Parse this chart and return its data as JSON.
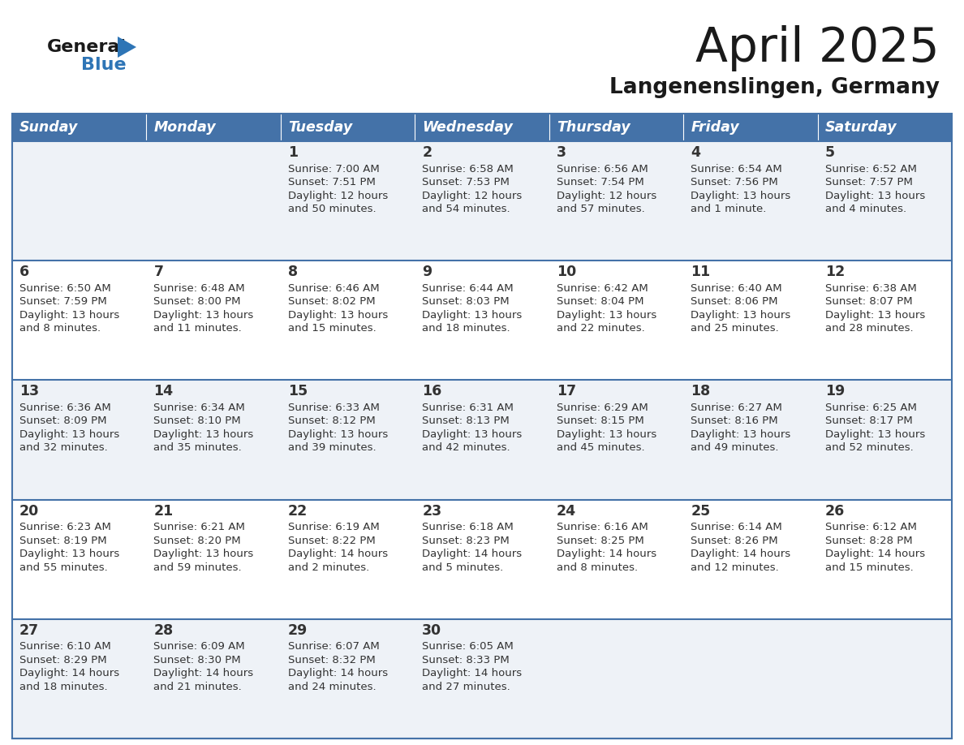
{
  "title": "April 2025",
  "subtitle": "Langenenslingen, Germany",
  "days_of_week": [
    "Sunday",
    "Monday",
    "Tuesday",
    "Wednesday",
    "Thursday",
    "Friday",
    "Saturday"
  ],
  "header_bg_color": "#4472a8",
  "header_text_color": "#ffffff",
  "cell_bg_even": "#eef2f7",
  "cell_bg_odd": "#ffffff",
  "row_line_color": "#4472a8",
  "text_color": "#333333",
  "title_color": "#1a1a1a",
  "logo_general_color": "#1a1a1a",
  "logo_blue_color": "#2e75b6",
  "weeks": [
    [
      {
        "day": null,
        "sunrise": null,
        "sunset": null,
        "daylight_line1": null,
        "daylight_line2": null
      },
      {
        "day": null,
        "sunrise": null,
        "sunset": null,
        "daylight_line1": null,
        "daylight_line2": null
      },
      {
        "day": 1,
        "sunrise": "7:00 AM",
        "sunset": "7:51 PM",
        "daylight_line1": "Daylight: 12 hours",
        "daylight_line2": "and 50 minutes."
      },
      {
        "day": 2,
        "sunrise": "6:58 AM",
        "sunset": "7:53 PM",
        "daylight_line1": "Daylight: 12 hours",
        "daylight_line2": "and 54 minutes."
      },
      {
        "day": 3,
        "sunrise": "6:56 AM",
        "sunset": "7:54 PM",
        "daylight_line1": "Daylight: 12 hours",
        "daylight_line2": "and 57 minutes."
      },
      {
        "day": 4,
        "sunrise": "6:54 AM",
        "sunset": "7:56 PM",
        "daylight_line1": "Daylight: 13 hours",
        "daylight_line2": "and 1 minute."
      },
      {
        "day": 5,
        "sunrise": "6:52 AM",
        "sunset": "7:57 PM",
        "daylight_line1": "Daylight: 13 hours",
        "daylight_line2": "and 4 minutes."
      }
    ],
    [
      {
        "day": 6,
        "sunrise": "6:50 AM",
        "sunset": "7:59 PM",
        "daylight_line1": "Daylight: 13 hours",
        "daylight_line2": "and 8 minutes."
      },
      {
        "day": 7,
        "sunrise": "6:48 AM",
        "sunset": "8:00 PM",
        "daylight_line1": "Daylight: 13 hours",
        "daylight_line2": "and 11 minutes."
      },
      {
        "day": 8,
        "sunrise": "6:46 AM",
        "sunset": "8:02 PM",
        "daylight_line1": "Daylight: 13 hours",
        "daylight_line2": "and 15 minutes."
      },
      {
        "day": 9,
        "sunrise": "6:44 AM",
        "sunset": "8:03 PM",
        "daylight_line1": "Daylight: 13 hours",
        "daylight_line2": "and 18 minutes."
      },
      {
        "day": 10,
        "sunrise": "6:42 AM",
        "sunset": "8:04 PM",
        "daylight_line1": "Daylight: 13 hours",
        "daylight_line2": "and 22 minutes."
      },
      {
        "day": 11,
        "sunrise": "6:40 AM",
        "sunset": "8:06 PM",
        "daylight_line1": "Daylight: 13 hours",
        "daylight_line2": "and 25 minutes."
      },
      {
        "day": 12,
        "sunrise": "6:38 AM",
        "sunset": "8:07 PM",
        "daylight_line1": "Daylight: 13 hours",
        "daylight_line2": "and 28 minutes."
      }
    ],
    [
      {
        "day": 13,
        "sunrise": "6:36 AM",
        "sunset": "8:09 PM",
        "daylight_line1": "Daylight: 13 hours",
        "daylight_line2": "and 32 minutes."
      },
      {
        "day": 14,
        "sunrise": "6:34 AM",
        "sunset": "8:10 PM",
        "daylight_line1": "Daylight: 13 hours",
        "daylight_line2": "and 35 minutes."
      },
      {
        "day": 15,
        "sunrise": "6:33 AM",
        "sunset": "8:12 PM",
        "daylight_line1": "Daylight: 13 hours",
        "daylight_line2": "and 39 minutes."
      },
      {
        "day": 16,
        "sunrise": "6:31 AM",
        "sunset": "8:13 PM",
        "daylight_line1": "Daylight: 13 hours",
        "daylight_line2": "and 42 minutes."
      },
      {
        "day": 17,
        "sunrise": "6:29 AM",
        "sunset": "8:15 PM",
        "daylight_line1": "Daylight: 13 hours",
        "daylight_line2": "and 45 minutes."
      },
      {
        "day": 18,
        "sunrise": "6:27 AM",
        "sunset": "8:16 PM",
        "daylight_line1": "Daylight: 13 hours",
        "daylight_line2": "and 49 minutes."
      },
      {
        "day": 19,
        "sunrise": "6:25 AM",
        "sunset": "8:17 PM",
        "daylight_line1": "Daylight: 13 hours",
        "daylight_line2": "and 52 minutes."
      }
    ],
    [
      {
        "day": 20,
        "sunrise": "6:23 AM",
        "sunset": "8:19 PM",
        "daylight_line1": "Daylight: 13 hours",
        "daylight_line2": "and 55 minutes."
      },
      {
        "day": 21,
        "sunrise": "6:21 AM",
        "sunset": "8:20 PM",
        "daylight_line1": "Daylight: 13 hours",
        "daylight_line2": "and 59 minutes."
      },
      {
        "day": 22,
        "sunrise": "6:19 AM",
        "sunset": "8:22 PM",
        "daylight_line1": "Daylight: 14 hours",
        "daylight_line2": "and 2 minutes."
      },
      {
        "day": 23,
        "sunrise": "6:18 AM",
        "sunset": "8:23 PM",
        "daylight_line1": "Daylight: 14 hours",
        "daylight_line2": "and 5 minutes."
      },
      {
        "day": 24,
        "sunrise": "6:16 AM",
        "sunset": "8:25 PM",
        "daylight_line1": "Daylight: 14 hours",
        "daylight_line2": "and 8 minutes."
      },
      {
        "day": 25,
        "sunrise": "6:14 AM",
        "sunset": "8:26 PM",
        "daylight_line1": "Daylight: 14 hours",
        "daylight_line2": "and 12 minutes."
      },
      {
        "day": 26,
        "sunrise": "6:12 AM",
        "sunset": "8:28 PM",
        "daylight_line1": "Daylight: 14 hours",
        "daylight_line2": "and 15 minutes."
      }
    ],
    [
      {
        "day": 27,
        "sunrise": "6:10 AM",
        "sunset": "8:29 PM",
        "daylight_line1": "Daylight: 14 hours",
        "daylight_line2": "and 18 minutes."
      },
      {
        "day": 28,
        "sunrise": "6:09 AM",
        "sunset": "8:30 PM",
        "daylight_line1": "Daylight: 14 hours",
        "daylight_line2": "and 21 minutes."
      },
      {
        "day": 29,
        "sunrise": "6:07 AM",
        "sunset": "8:32 PM",
        "daylight_line1": "Daylight: 14 hours",
        "daylight_line2": "and 24 minutes."
      },
      {
        "day": 30,
        "sunrise": "6:05 AM",
        "sunset": "8:33 PM",
        "daylight_line1": "Daylight: 14 hours",
        "daylight_line2": "and 27 minutes."
      },
      {
        "day": null,
        "sunrise": null,
        "sunset": null,
        "daylight_line1": null,
        "daylight_line2": null
      },
      {
        "day": null,
        "sunrise": null,
        "sunset": null,
        "daylight_line1": null,
        "daylight_line2": null
      },
      {
        "day": null,
        "sunrise": null,
        "sunset": null,
        "daylight_line1": null,
        "daylight_line2": null
      }
    ]
  ]
}
